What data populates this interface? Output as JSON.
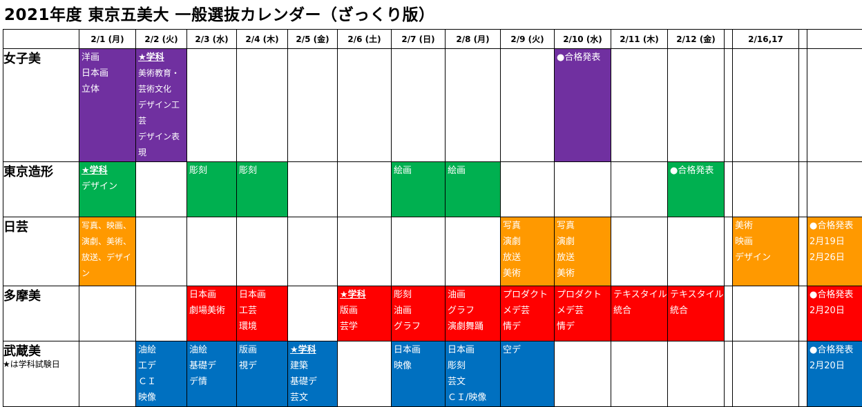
{
  "title": "2021年度 東京五美大 一般選抜カレンダー（ざっくり版）",
  "headers": [
    "",
    "2/1 (月)",
    "2/2 (火)",
    "2/3 (水)",
    "2/4 (木)",
    "2/5 (金)",
    "2/6 (土)",
    "2/7 (日)",
    "2/8 (月)",
    "2/9 (火)",
    "2/10 (水)",
    "2/11 (木)",
    "2/12 (金)",
    "",
    "2/16,17",
    "",
    ""
  ],
  "colors": {
    "purple": "#7030a0",
    "green": "#00b050",
    "orange": "#ff9900",
    "red": "#ff0000",
    "blue": "#0070c0"
  },
  "rows": [
    {
      "school": "女子美",
      "color": "#7030a0",
      "cells": [
        {
          "lines": [
            "洋画",
            "日本画",
            "立体"
          ]
        },
        {
          "lines": [
            "★学科",
            "美術教育・芸術文化",
            "デザイン工芸",
            "デザイン表現"
          ]
        },
        {},
        {},
        {},
        {},
        {},
        {},
        {},
        {
          "lines": [
            "●合格発表"
          ]
        },
        {},
        {},
        {},
        {},
        {},
        {}
      ]
    },
    {
      "school": "東京造形",
      "color": "#00b050",
      "cells": [
        {
          "lines": [
            "★学科",
            "デザイン"
          ]
        },
        {},
        {
          "lines": [
            "彫刻"
          ]
        },
        {
          "lines": [
            "彫刻"
          ]
        },
        {},
        {},
        {
          "lines": [
            "絵画"
          ]
        },
        {
          "lines": [
            "絵画"
          ]
        },
        {},
        {},
        {},
        {
          "lines": [
            "●合格発表"
          ]
        },
        {},
        {},
        {},
        {}
      ]
    },
    {
      "school": "日芸",
      "color": "#ff9900",
      "cells": [
        {
          "lines": [
            "写真、映画、演劇、美術、放送、デザイン"
          ]
        },
        {},
        {},
        {},
        {},
        {},
        {},
        {},
        {
          "lines": [
            "写真",
            "演劇",
            "放送",
            "美術"
          ]
        },
        {
          "lines": [
            "写真",
            "演劇",
            "放送",
            "美術"
          ]
        },
        {},
        {},
        {},
        {
          "lines": [
            "美術",
            "映画",
            "デザイン"
          ]
        },
        {},
        {
          "lines": [
            "●合格発表",
            "2月19日",
            "2月26日"
          ]
        }
      ]
    },
    {
      "school": "多摩美",
      "color": "#ff0000",
      "cells": [
        {},
        {},
        {
          "lines": [
            "日本画",
            "劇場美術"
          ]
        },
        {
          "lines": [
            "日本画",
            "工芸",
            "環境"
          ]
        },
        {},
        {
          "lines": [
            "★学科",
            "版画",
            "芸学"
          ]
        },
        {
          "lines": [
            "彫刻",
            "油画",
            "グラフ"
          ]
        },
        {
          "lines": [
            "油画",
            "グラフ",
            "演劇舞踊"
          ]
        },
        {
          "lines": [
            "プロダクト",
            "メデ芸",
            "情デ"
          ]
        },
        {
          "lines": [
            "プロダクト",
            "メデ芸",
            "情デ"
          ]
        },
        {
          "lines": [
            "テキスタイル",
            "統合"
          ]
        },
        {
          "lines": [
            "テキスタイル",
            "統合"
          ]
        },
        {},
        {},
        {},
        {
          "lines": [
            "●合格発表",
            "2月20日"
          ]
        }
      ]
    },
    {
      "school": "武蔵美",
      "color": "#0070c0",
      "cells": [
        {},
        {
          "lines": [
            "油絵",
            "工デ",
            "ＣＩ",
            "映像"
          ]
        },
        {
          "lines": [
            "油絵",
            "基礎デ",
            "デ情"
          ]
        },
        {
          "lines": [
            "版画",
            "視デ"
          ]
        },
        {
          "lines": [
            "★学科",
            "建築",
            "基礎デ",
            "芸文"
          ]
        },
        {},
        {
          "lines": [
            "日本画",
            "映像"
          ]
        },
        {
          "lines": [
            "日本画",
            "彫刻",
            "芸文",
            "ＣＩ/映像"
          ]
        },
        {
          "lines": [
            "空デ"
          ]
        },
        {},
        {},
        {},
        {},
        {},
        {},
        {
          "lines": [
            "●合格発表",
            "2月20日"
          ]
        }
      ]
    }
  ],
  "footer": "★は学科試験日"
}
